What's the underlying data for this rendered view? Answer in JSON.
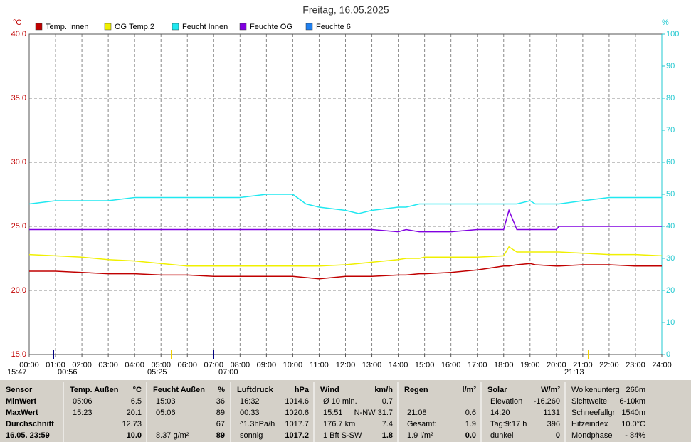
{
  "chart_data": {
    "type": "line",
    "title": "Freitag, 16.05.2025",
    "y_unit": "°C",
    "y2_unit": "%",
    "x": [
      0,
      1,
      2,
      3,
      4,
      5,
      6,
      7,
      8,
      9,
      10,
      10.5,
      11,
      12,
      12.5,
      13,
      14,
      14.3,
      14.8,
      15,
      16,
      17,
      18,
      18.2,
      18.5,
      19,
      19.2,
      20,
      20.1,
      21,
      22,
      23,
      24
    ],
    "xlim": [
      0,
      24
    ],
    "xticks": [
      {
        "value": 0,
        "label": "00:00"
      },
      {
        "value": 1,
        "label": "01:00"
      },
      {
        "value": 2,
        "label": "02:00"
      },
      {
        "value": 3,
        "label": "03:00"
      },
      {
        "value": 4,
        "label": "04:00"
      },
      {
        "value": 5,
        "label": "05:00"
      },
      {
        "value": 6,
        "label": "06:00"
      },
      {
        "value": 7,
        "label": "07:00"
      },
      {
        "value": 8,
        "label": "08:00"
      },
      {
        "value": 9,
        "label": "09:00"
      },
      {
        "value": 10,
        "label": "10:00"
      },
      {
        "value": 11,
        "label": "11:00"
      },
      {
        "value": 12,
        "label": "12:00"
      },
      {
        "value": 13,
        "label": "13:00"
      },
      {
        "value": 14,
        "label": "14:00"
      },
      {
        "value": 15,
        "label": "15:00"
      },
      {
        "value": 16,
        "label": "16:00"
      },
      {
        "value": 17,
        "label": "17:00"
      },
      {
        "value": 18,
        "label": "18:00"
      },
      {
        "value": 19,
        "label": "19:00"
      },
      {
        "value": 20,
        "label": "20:00"
      },
      {
        "value": 21,
        "label": "21:00"
      },
      {
        "value": 22,
        "label": "22:00"
      },
      {
        "value": 23,
        "label": "23:00"
      },
      {
        "value": 24,
        "label": "24:00"
      }
    ],
    "ylim": [
      15,
      40
    ],
    "yticks": [
      {
        "value": 15,
        "label": "15.0"
      },
      {
        "value": 20,
        "label": "20.0"
      },
      {
        "value": 25,
        "label": "25.0"
      },
      {
        "value": 30,
        "label": "30.0"
      },
      {
        "value": 35,
        "label": "35.0"
      },
      {
        "value": 40,
        "label": "40.0"
      }
    ],
    "y2lim": [
      0,
      100
    ],
    "y2ticks": [
      0,
      10,
      20,
      30,
      40,
      50,
      60,
      70,
      80,
      90,
      100
    ],
    "grid": true,
    "series": [
      {
        "name": "Temp. Innen",
        "color": "#c00000",
        "values": [
          21.5,
          21.5,
          21.4,
          21.3,
          21.3,
          21.2,
          21.2,
          21.1,
          21.1,
          21.1,
          21.1,
          21.0,
          20.9,
          21.1,
          21.1,
          21.1,
          21.2,
          21.2,
          21.3,
          21.3,
          21.4,
          21.6,
          21.9,
          21.9,
          22.0,
          22.1,
          22.0,
          21.9,
          21.9,
          22.0,
          22.0,
          21.9,
          21.9
        ]
      },
      {
        "name": "OG Temp.2",
        "color": "#f0f000",
        "values": [
          22.8,
          22.7,
          22.6,
          22.4,
          22.3,
          22.1,
          21.9,
          21.9,
          21.9,
          21.9,
          21.9,
          21.9,
          21.9,
          22.0,
          22.1,
          22.2,
          22.4,
          22.5,
          22.5,
          22.6,
          22.6,
          22.6,
          22.7,
          23.4,
          23.0,
          23.0,
          23.0,
          23.0,
          23.0,
          22.9,
          22.8,
          22.8,
          22.7
        ]
      },
      {
        "name": "Feucht Innen",
        "color": "#20e8f0",
        "axis": "y2",
        "values": [
          47,
          48,
          48,
          48,
          49,
          49,
          49,
          49,
          49,
          50,
          50,
          47,
          46,
          45,
          44,
          45,
          46,
          46,
          47,
          47,
          47,
          47,
          47,
          47,
          47,
          48,
          47,
          47,
          47,
          48,
          49,
          49,
          49
        ]
      },
      {
        "name": "Feuchte OG",
        "color": "#8000e0",
        "axis": "y2",
        "values": [
          39,
          39,
          39,
          39,
          39,
          39,
          39,
          39,
          39,
          39,
          39,
          39,
          39,
          39,
          39,
          39,
          38.3,
          39,
          38.3,
          38.3,
          38.3,
          39,
          39,
          45,
          39,
          39,
          39,
          39,
          40,
          40,
          40,
          40,
          40
        ]
      },
      {
        "name": "Feuchte 6",
        "color": "#2080f0",
        "axis": "y2",
        "values": [
          null,
          null,
          null,
          null,
          null,
          null,
          null,
          null,
          null,
          null,
          null,
          null,
          null,
          null,
          null,
          null,
          null,
          null,
          null,
          null,
          null,
          null,
          null,
          null,
          null,
          null,
          null,
          null,
          null,
          null,
          null,
          null,
          null
        ]
      }
    ],
    "annotations": [
      "15:47",
      "00:56",
      "05:25",
      "07:00",
      "21:13"
    ]
  },
  "table": {
    "blocks": [
      {
        "title": "Sensor",
        "rows": [
          {
            "left": "MinWert"
          },
          {
            "left": "MaxWert"
          },
          {
            "left": "Durchschnitt"
          },
          {
            "left": "16.05. 23:59"
          }
        ]
      },
      {
        "title": "Temp. Außen",
        "unit": "°C",
        "rows": [
          {
            "left": "05:06",
            "right": "6.5"
          },
          {
            "left": "15:23",
            "right": "20.1"
          },
          {
            "right": "12.73"
          },
          {
            "right": "10.0"
          }
        ]
      },
      {
        "title": "Feucht Außen",
        "unit": "%",
        "rows": [
          {
            "left": "15:03",
            "right": "36"
          },
          {
            "left": "05:06",
            "right": "89"
          },
          {
            "right": "67"
          },
          {
            "left": "8.37 g/m²",
            "right": "89"
          }
        ]
      },
      {
        "title": "Luftdruck",
        "unit": "hPa",
        "rows": [
          {
            "left": "16:32",
            "right": "1014.6"
          },
          {
            "left": "00:33",
            "right": "1020.6"
          },
          {
            "left": "^1.3hPa/h",
            "right": "1017.7"
          },
          {
            "left": "sonnig",
            "right": "1017.2"
          }
        ]
      },
      {
        "title": "Wind",
        "unit": "km/h",
        "rows": [
          {
            "left": "Ø 10 min.",
            "right": "0.7"
          },
          {
            "left": "15:51",
            "right": "N-NW 31.7"
          },
          {
            "left": "176.7 km",
            "right": "7.4"
          },
          {
            "left": "1 Bft S-SW",
            "right": "1.8"
          }
        ]
      },
      {
        "title": "Regen",
        "unit": "l/m²",
        "rows": [
          {},
          {
            "left": "21:08",
            "right": "0.6"
          },
          {
            "left": "Gesamt:",
            "right": "1.9"
          },
          {
            "left": "1.9 l/m²",
            "right": "0.0"
          }
        ]
      },
      {
        "title": "Solar",
        "unit": "W/m²",
        "rows": [
          {
            "left": "Elevation",
            "right": "-16.260"
          },
          {
            "left": "14:20",
            "right": "1131"
          },
          {
            "left": "Tag:9:17 h",
            "right": "396"
          },
          {
            "left": "dunkel",
            "right": "0"
          }
        ]
      },
      {
        "rows": [
          {
            "left": "Wolkenunterg",
            "right": "266m"
          },
          {
            "left": "Sichtweite",
            "right": "6-10km"
          },
          {
            "left": "Schneefallgr",
            "right": "1540m"
          },
          {
            "left": "Hitzeindex",
            "right": "10.0°C"
          },
          {
            "left": "Mondphase",
            "right": "- 84%"
          }
        ]
      }
    ]
  }
}
